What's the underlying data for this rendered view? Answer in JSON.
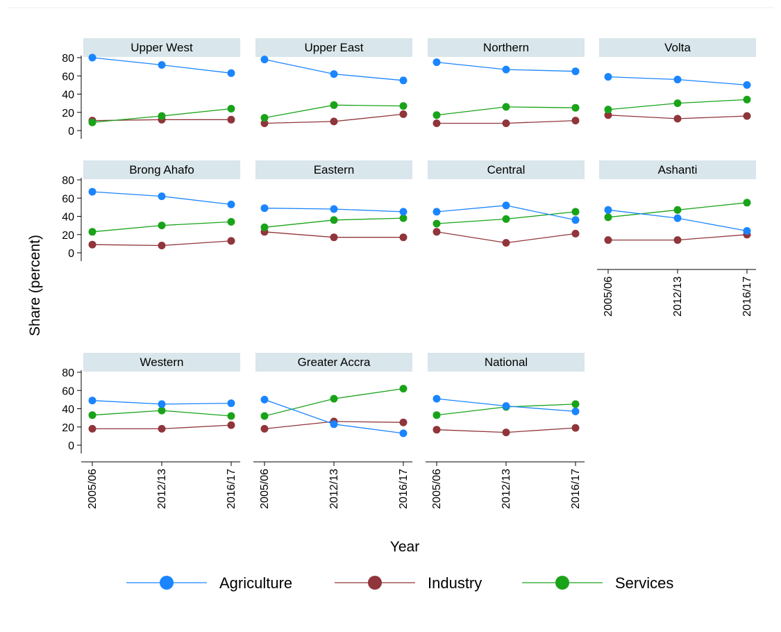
{
  "chart_data": {
    "type": "line",
    "title": "",
    "xlabel": "Year",
    "ylabel": "Share (percent)",
    "categories": [
      "2005/06",
      "2012/13",
      "2016/17"
    ],
    "ylim": [
      0,
      80
    ],
    "yticks": [
      0,
      20,
      40,
      60,
      80
    ],
    "grid": false,
    "legend_position": "bottom",
    "series_meta": [
      {
        "name": "Agriculture",
        "color": "#1a85ff"
      },
      {
        "name": "Industry",
        "color": "#90353b"
      },
      {
        "name": "Services",
        "color": "#19a319"
      }
    ],
    "panels": [
      {
        "title": "Upper West",
        "series": [
          {
            "name": "Agriculture",
            "values": [
              80,
              72,
              63
            ]
          },
          {
            "name": "Industry",
            "values": [
              11,
              12,
              12
            ]
          },
          {
            "name": "Services",
            "values": [
              9,
              16,
              24
            ]
          }
        ]
      },
      {
        "title": "Upper East",
        "series": [
          {
            "name": "Agriculture",
            "values": [
              78,
              62,
              55
            ]
          },
          {
            "name": "Industry",
            "values": [
              8,
              10,
              18
            ]
          },
          {
            "name": "Services",
            "values": [
              14,
              28,
              27
            ]
          }
        ]
      },
      {
        "title": "Northern",
        "series": [
          {
            "name": "Agriculture",
            "values": [
              75,
              67,
              65
            ]
          },
          {
            "name": "Industry",
            "values": [
              8,
              8,
              11
            ]
          },
          {
            "name": "Services",
            "values": [
              17,
              26,
              25
            ]
          }
        ]
      },
      {
        "title": "Volta",
        "series": [
          {
            "name": "Agriculture",
            "values": [
              59,
              56,
              50
            ]
          },
          {
            "name": "Industry",
            "values": [
              17,
              13,
              16
            ]
          },
          {
            "name": "Services",
            "values": [
              23,
              30,
              34
            ]
          }
        ]
      },
      {
        "title": "Brong Ahafo",
        "series": [
          {
            "name": "Agriculture",
            "values": [
              67,
              62,
              53
            ]
          },
          {
            "name": "Industry",
            "values": [
              9,
              8,
              13
            ]
          },
          {
            "name": "Services",
            "values": [
              23,
              30,
              34
            ]
          }
        ]
      },
      {
        "title": "Eastern",
        "series": [
          {
            "name": "Agriculture",
            "values": [
              49,
              48,
              45
            ]
          },
          {
            "name": "Industry",
            "values": [
              23,
              17,
              17
            ]
          },
          {
            "name": "Services",
            "values": [
              28,
              36,
              38
            ]
          }
        ]
      },
      {
        "title": "Central",
        "series": [
          {
            "name": "Agriculture",
            "values": [
              45,
              52,
              36
            ]
          },
          {
            "name": "Industry",
            "values": [
              23,
              11,
              21
            ]
          },
          {
            "name": "Services",
            "values": [
              32,
              37,
              45
            ]
          }
        ]
      },
      {
        "title": "Ashanti",
        "series": [
          {
            "name": "Agriculture",
            "values": [
              47,
              38,
              24
            ]
          },
          {
            "name": "Industry",
            "values": [
              14,
              14,
              20
            ]
          },
          {
            "name": "Services",
            "values": [
              39,
              47,
              55
            ]
          }
        ]
      },
      {
        "title": "Western",
        "series": [
          {
            "name": "Agriculture",
            "values": [
              49,
              45,
              46
            ]
          },
          {
            "name": "Industry",
            "values": [
              18,
              18,
              22
            ]
          },
          {
            "name": "Services",
            "values": [
              33,
              38,
              32
            ]
          }
        ]
      },
      {
        "title": "Greater Accra",
        "series": [
          {
            "name": "Agriculture",
            "values": [
              50,
              23,
              13
            ]
          },
          {
            "name": "Industry",
            "values": [
              18,
              26,
              25
            ]
          },
          {
            "name": "Services",
            "values": [
              32,
              51,
              62
            ]
          }
        ]
      },
      {
        "title": "National",
        "series": [
          {
            "name": "Agriculture",
            "values": [
              51,
              43,
              37
            ]
          },
          {
            "name": "Industry",
            "values": [
              17,
              14,
              19
            ]
          },
          {
            "name": "Services",
            "values": [
              33,
              42,
              45
            ]
          }
        ]
      }
    ]
  }
}
